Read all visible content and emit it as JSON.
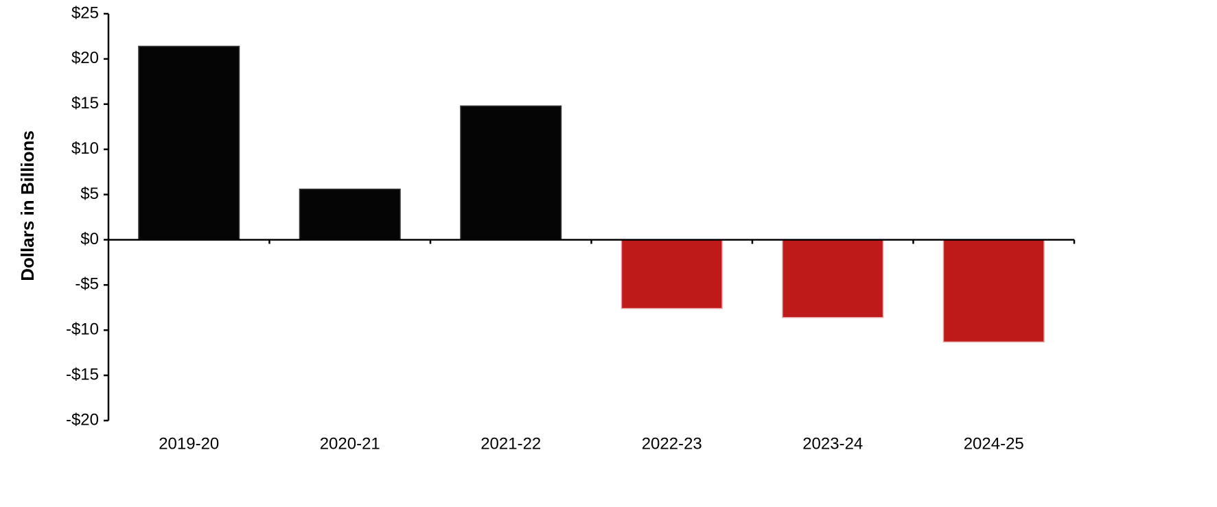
{
  "chart_data": {
    "type": "bar",
    "title": "",
    "xlabel": "",
    "ylabel": "Dollars in Billions",
    "categories": [
      "2019-20",
      "2020-21",
      "2021-22",
      "2022-23",
      "2023-24",
      "2024-25"
    ],
    "values": [
      21.4,
      5.6,
      14.8,
      -7.6,
      -8.6,
      -11.3
    ],
    "ylim": [
      -20,
      25
    ],
    "yticks": [
      25,
      20,
      15,
      10,
      5,
      0,
      -5,
      -10,
      -15,
      -20
    ],
    "ytick_labels": [
      "$25",
      "$20",
      "$15",
      "$10",
      "$5",
      "$0",
      "-$5",
      "-$10",
      "-$15",
      "-$20"
    ],
    "grid": false,
    "legend": "none",
    "colors": {
      "positive": "#050505",
      "negative": "#be1a1a"
    }
  }
}
